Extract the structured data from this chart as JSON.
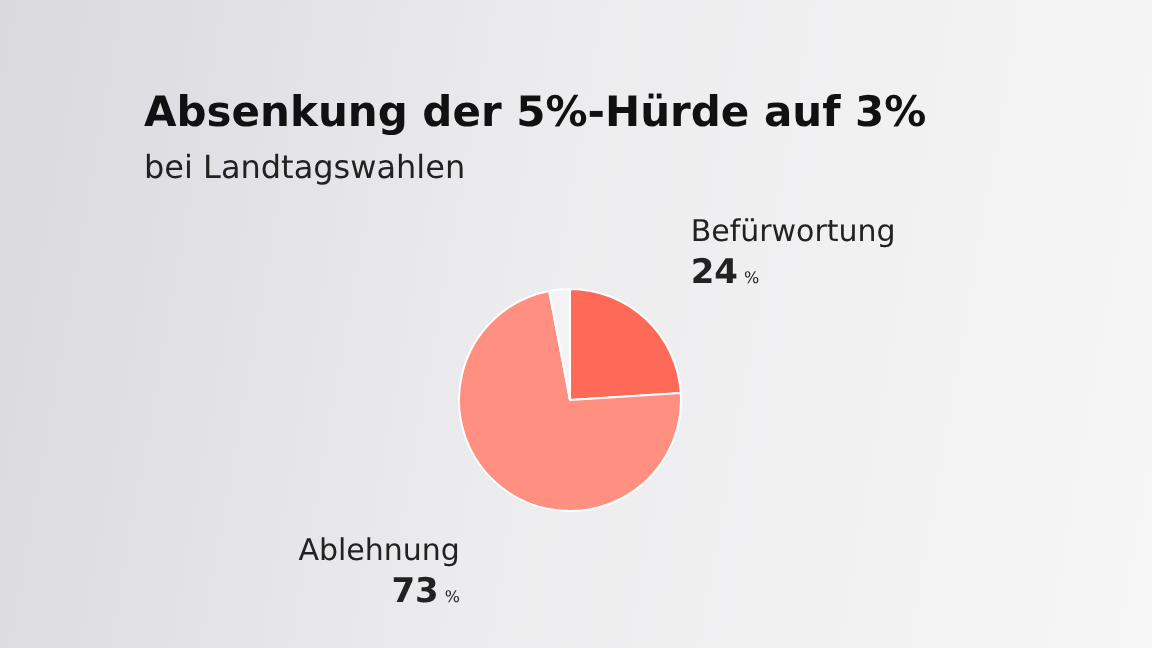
{
  "chart_data": {
    "type": "pie",
    "title": "Absenkung der 5%-Hürde auf 3%",
    "subtitle": "bei Landtagswahlen",
    "categories": [
      "Befürwortung",
      "Ablehnung",
      null
    ],
    "values": [
      24,
      73,
      3
    ],
    "colors": [
      "#ff6a58",
      "#ff8f81",
      "#f3f3f3"
    ],
    "value_labels": [
      "24 %",
      "73 %",
      null
    ],
    "legend": false
  }
}
